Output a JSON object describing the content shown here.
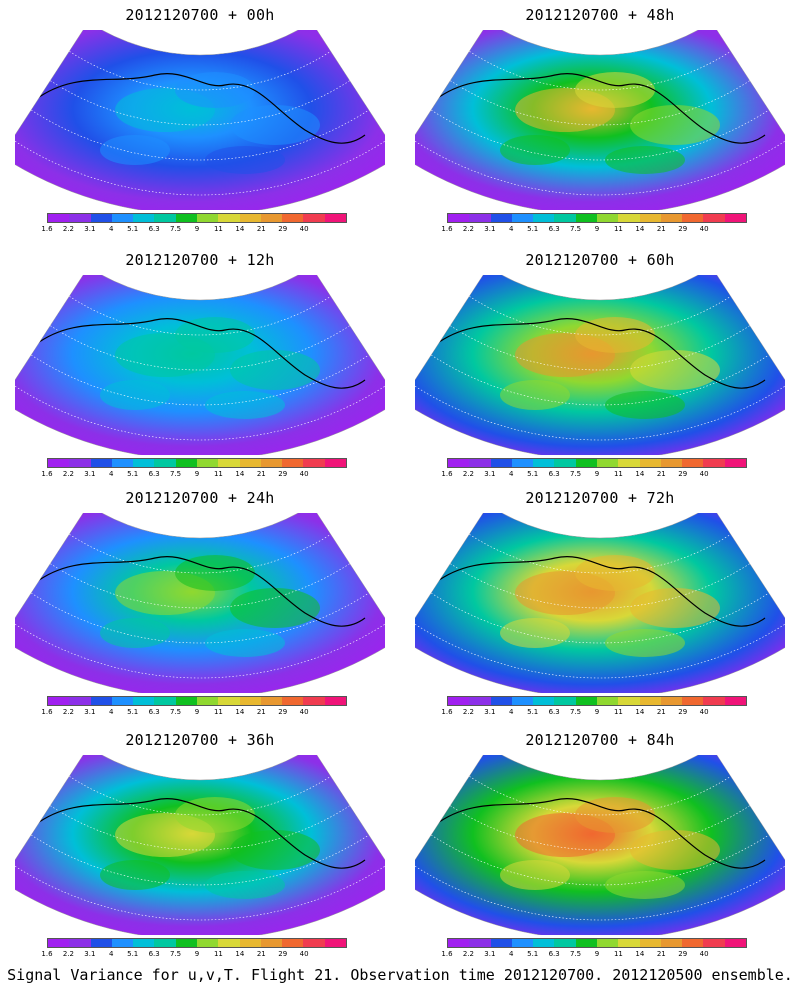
{
  "panels": [
    {
      "title": "2012120700 + 00h",
      "intensity": 0.3
    },
    {
      "title": "2012120700 + 48h",
      "intensity": 0.72
    },
    {
      "title": "2012120700 + 12h",
      "intensity": 0.45
    },
    {
      "title": "2012120700 + 60h",
      "intensity": 0.8
    },
    {
      "title": "2012120700 + 24h",
      "intensity": 0.55
    },
    {
      "title": "2012120700 + 72h",
      "intensity": 0.85
    },
    {
      "title": "2012120700 + 36h",
      "intensity": 0.63
    },
    {
      "title": "2012120700 + 84h",
      "intensity": 0.92
    }
  ],
  "colorbar": {
    "ticks": [
      "1.6",
      "2.2",
      "3.1",
      "4",
      "5.1",
      "6.3",
      "7.5",
      "9",
      "11",
      "14",
      "21",
      "29",
      "40"
    ],
    "colors": [
      "#a020f0",
      "#8c30e8",
      "#2050e8",
      "#1e90ff",
      "#00bfd8",
      "#00c8a0",
      "#10c020",
      "#90d830",
      "#d8d838",
      "#e8b830",
      "#e89830",
      "#f06830",
      "#f03c50",
      "#f01478"
    ]
  },
  "caption": "Signal Variance for u,v,T. Flight 21. Observation time 2012120700. 2012120500 ensemble."
}
